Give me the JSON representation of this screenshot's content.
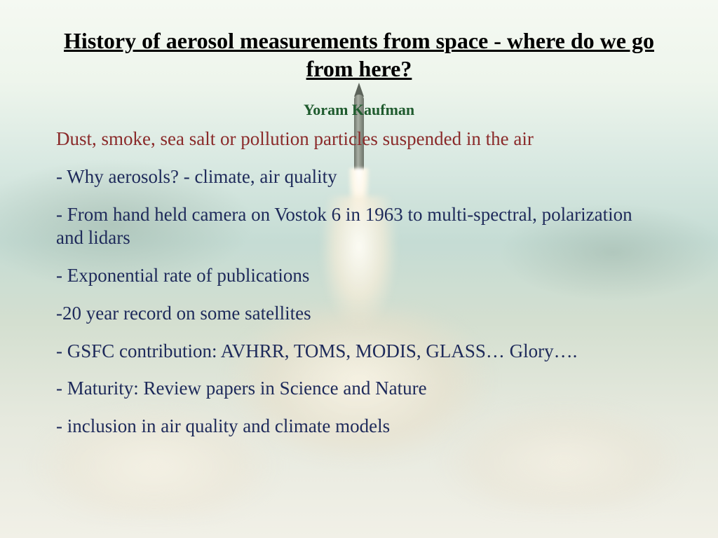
{
  "colors": {
    "title": "#000000",
    "author": "#1f5b2e",
    "subtitle": "#8a2a2a",
    "body": "#1e2a5a"
  },
  "title": "History of aerosol measurements from space - where do we go from here?",
  "author": "Yoram Kaufman",
  "subtitle": "Dust, smoke, sea salt or pollution particles suspended in the air",
  "bullets": [
    "- Why aerosols? - climate, air quality",
    "- From hand held camera on Vostok 6 in 1963 to multi-spectral, polarization and lidars",
    "- Exponential rate of publications",
    "-20 year record on some satellites",
    "- GSFC contribution: AVHRR, TOMS, MODIS, GLASS… Glory….",
    "- Maturity: Review papers in Science and Nature",
    "- inclusion in air quality and climate models"
  ]
}
